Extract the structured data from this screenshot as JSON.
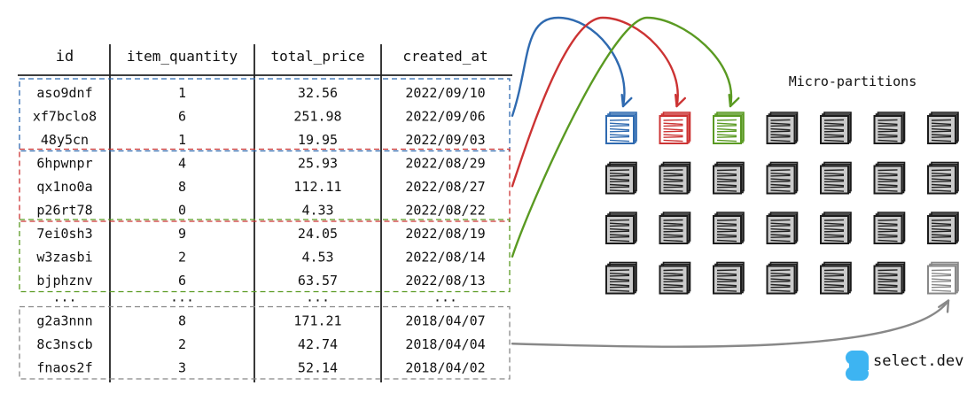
{
  "table": {
    "headers": [
      "id",
      "item_quantity",
      "total_price",
      "created_at"
    ],
    "groups": [
      {
        "color": "#2f6ab0",
        "rows": [
          [
            "aso9dnf",
            "1",
            "32.56",
            "2022/09/10"
          ],
          [
            "xf7bclo8",
            "6",
            "251.98",
            "2022/09/06"
          ],
          [
            "48y5cn",
            "1",
            "19.95",
            "2022/09/03"
          ]
        ]
      },
      {
        "color": "#cc3333",
        "rows": [
          [
            "6hpwnpr",
            "4",
            "25.93",
            "2022/08/29"
          ],
          [
            "qx1no0a",
            "8",
            "112.11",
            "2022/08/27"
          ],
          [
            "p26rt78",
            "0",
            "4.33",
            "2022/08/22"
          ]
        ]
      },
      {
        "color": "#5a9a22",
        "rows": [
          [
            "7ei0sh3",
            "9",
            "24.05",
            "2022/08/19"
          ],
          [
            "w3zasbi",
            "2",
            "4.53",
            "2022/08/14"
          ],
          [
            "bjphznv",
            "6",
            "63.57",
            "2022/08/13"
          ]
        ]
      },
      {
        "color": "#888888",
        "rows": [
          [
            "...",
            "...",
            "...",
            "..."
          ]
        ],
        "ellipsis": true
      },
      {
        "color": "#888888",
        "rows": [
          [
            "g2a3nnn",
            "8",
            "171.21",
            "2018/04/07"
          ],
          [
            "8c3nscb",
            "2",
            "42.74",
            "2018/04/04"
          ],
          [
            "fnaos2f",
            "3",
            "52.14",
            "2018/04/02"
          ]
        ]
      }
    ]
  },
  "micro_partitions": {
    "label": "Micro-partitions",
    "rows": 4,
    "cols": 7,
    "highlighted": [
      {
        "row": 0,
        "col": 0,
        "color": "#2f6ab0"
      },
      {
        "row": 0,
        "col": 1,
        "color": "#cc3333"
      },
      {
        "row": 0,
        "col": 2,
        "color": "#5a9a22"
      },
      {
        "row": 3,
        "col": 6,
        "color": "#888888"
      }
    ]
  },
  "arrows": [
    {
      "from_group": 0,
      "to": [
        0,
        0
      ],
      "color": "#2f6ab0"
    },
    {
      "from_group": 1,
      "to": [
        0,
        1
      ],
      "color": "#cc3333"
    },
    {
      "from_group": 2,
      "to": [
        0,
        2
      ],
      "color": "#5a9a22"
    },
    {
      "from_group": 4,
      "to": [
        3,
        6
      ],
      "color": "#888888"
    }
  ],
  "brand": {
    "name": "select.dev",
    "logo_color": "#3db4f2"
  }
}
